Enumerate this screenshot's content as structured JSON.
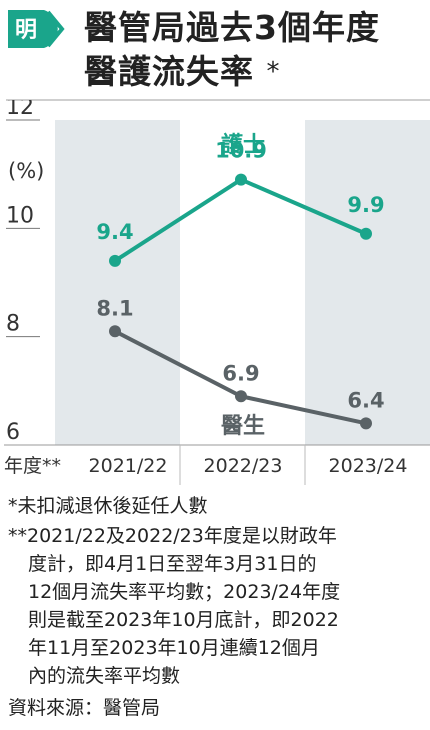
{
  "logo": {
    "text": "明",
    "color": "#1aa58b"
  },
  "header": {
    "title_line1": "醫管局過去3個年度",
    "title_line2": "醫護流失率",
    "title_mark": "*"
  },
  "chart_data": {
    "type": "line",
    "categories": [
      "2021/22",
      "2022/23",
      "2023/24"
    ],
    "xlabel": "年度**",
    "ylabel": "(%)",
    "ylim": [
      6,
      12
    ],
    "yticks": [
      6,
      8,
      10,
      12
    ],
    "series": [
      {
        "name": "護士",
        "values": [
          9.4,
          10.9,
          9.9
        ],
        "color": "#1aa58b"
      },
      {
        "name": "醫生",
        "values": [
          8.1,
          6.9,
          6.4
        ],
        "color": "#5a6266"
      }
    ],
    "band_color": "#e3e8eb"
  },
  "footnotes": {
    "note1": "*未扣減退休後延任人數",
    "note2_lines": [
      "**2021/22及2022/23年度是以財政年",
      "度計，即4月1日至翌年3月31日的",
      "12個月流失率平均數；2023/24年度",
      "則是截至2023年10月底計，即2022",
      "年11月至2023年10月連續12個月",
      "內的流失率平均數"
    ],
    "source": "資料來源：醫管局"
  }
}
